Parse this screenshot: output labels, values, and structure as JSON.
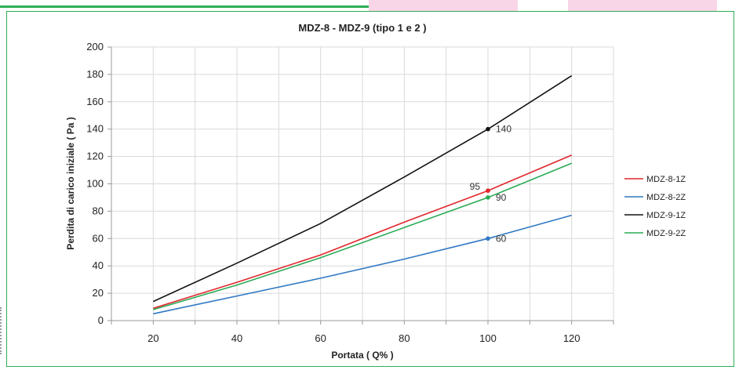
{
  "chart_data": {
    "type": "line",
    "title": "MDZ-8 - MDZ-9 (tipo 1 e 2 )",
    "xlabel": "Portata  ( Q% )",
    "ylabel": "Perdita di carico iniziale ( Pa )",
    "xlim": [
      10,
      130
    ],
    "ylim": [
      0,
      200
    ],
    "x_ticks": [
      20,
      40,
      60,
      80,
      100,
      120
    ],
    "y_ticks": [
      0,
      20,
      40,
      60,
      80,
      100,
      120,
      140,
      160,
      180,
      200
    ],
    "grid": "vertical-and-horizontal",
    "legend": "right",
    "series": [
      {
        "name": "MDZ-8-1Z",
        "color": "#e0262c",
        "x": [
          20,
          40,
          60,
          80,
          100,
          120
        ],
        "y": [
          9,
          28,
          48,
          72,
          95,
          121
        ],
        "marker": {
          "x": 100,
          "y": 95,
          "label": "95",
          "label_side": "left"
        }
      },
      {
        "name": "MDZ-8-2Z",
        "color": "#2f78c4",
        "x": [
          20,
          40,
          60,
          80,
          100,
          120
        ],
        "y": [
          5,
          18,
          31,
          45,
          60,
          77
        ],
        "marker": {
          "x": 100,
          "y": 60,
          "label": "60",
          "label_side": "right"
        }
      },
      {
        "name": "MDZ-9-1Z",
        "color": "#111111",
        "x": [
          20,
          40,
          60,
          80,
          100,
          120
        ],
        "y": [
          14,
          42,
          71,
          105,
          140,
          179
        ],
        "marker": {
          "x": 100,
          "y": 140,
          "label": "140",
          "label_side": "right"
        }
      },
      {
        "name": "MDZ-9-2Z",
        "color": "#2bab55",
        "x": [
          20,
          40,
          60,
          80,
          100,
          120
        ],
        "y": [
          8,
          26,
          46,
          68,
          90,
          115
        ],
        "marker": {
          "x": 100,
          "y": 90,
          "label": "90",
          "label_side": "right"
        }
      }
    ]
  }
}
